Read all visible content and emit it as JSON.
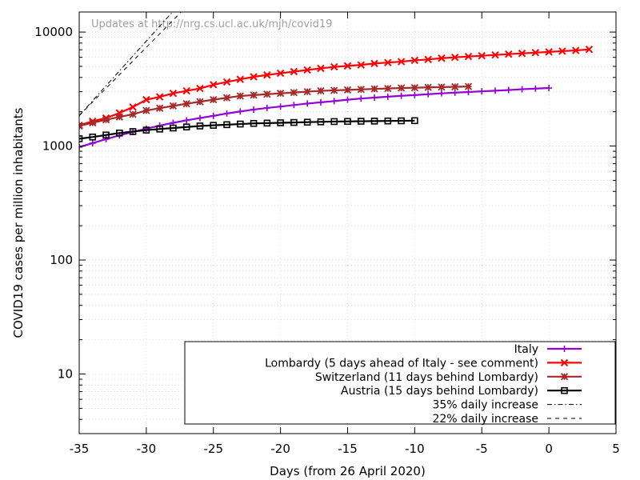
{
  "chart_data": {
    "type": "line",
    "watermark": "Updates at http://nrg.cs.ucl.ac.uk/mjh/covid19",
    "xlabel": "Days (from 26 April 2020)",
    "ylabel": "COVID19 cases per million inhabitants",
    "xlim": [
      -35,
      5
    ],
    "ylim": [
      3,
      15000
    ],
    "yscale": "log",
    "grid": true,
    "legend_position": "bottom-right",
    "x_ticks": [
      -35,
      -30,
      -25,
      -20,
      -15,
      -10,
      -5,
      0,
      5
    ],
    "y_ticks": [
      10,
      100,
      1000,
      10000
    ],
    "series": [
      {
        "name": "Italy",
        "color": "#9400d3",
        "marker": "plus",
        "x": [
          -35,
          -34,
          -33,
          -32,
          -31,
          -30,
          -29,
          -28,
          -27,
          -26,
          -25,
          -24,
          -23,
          -22,
          -21,
          -20,
          -19,
          -18,
          -17,
          -16,
          -15,
          -14,
          -13,
          -12,
          -11,
          -10,
          -9,
          -8,
          -7,
          -6,
          -5,
          -4,
          -3,
          -2,
          -1,
          0
        ],
        "y": [
          980,
          1060,
          1150,
          1240,
          1330,
          1420,
          1510,
          1600,
          1680,
          1760,
          1840,
          1930,
          2010,
          2090,
          2160,
          2220,
          2290,
          2360,
          2420,
          2480,
          2550,
          2610,
          2660,
          2710,
          2760,
          2800,
          2850,
          2900,
          2940,
          2980,
          3020,
          3060,
          3100,
          3150,
          3190,
          3230
        ]
      },
      {
        "name": "Lombardy (5 days ahead of Italy - see comment)",
        "color": "#ff0000",
        "marker": "cross",
        "x": [
          -35,
          -34,
          -33,
          -32,
          -31,
          -30,
          -29,
          -28,
          -27,
          -26,
          -25,
          -24,
          -23,
          -22,
          -21,
          -20,
          -19,
          -18,
          -17,
          -16,
          -15,
          -14,
          -13,
          -12,
          -11,
          -10,
          -9,
          -8,
          -7,
          -6,
          -5,
          -4,
          -3,
          -2,
          -1,
          0,
          1,
          2,
          3
        ],
        "y": [
          1520,
          1650,
          1760,
          1950,
          2200,
          2550,
          2700,
          2900,
          3050,
          3200,
          3450,
          3650,
          3850,
          4050,
          4200,
          4350,
          4500,
          4650,
          4800,
          4950,
          5050,
          5150,
          5300,
          5400,
          5500,
          5650,
          5750,
          5900,
          6000,
          6100,
          6200,
          6300,
          6400,
          6500,
          6600,
          6700,
          6800,
          6900,
          7050
        ]
      },
      {
        "name": "Switzerland (11 days behind Lombardy)",
        "color": "#a52a2a",
        "marker": "star",
        "x": [
          -35,
          -34,
          -33,
          -32,
          -31,
          -30,
          -29,
          -28,
          -27,
          -26,
          -25,
          -24,
          -23,
          -22,
          -21,
          -20,
          -19,
          -18,
          -17,
          -16,
          -15,
          -14,
          -13,
          -12,
          -11,
          -10,
          -9,
          -8,
          -7,
          -6
        ],
        "y": [
          1500,
          1600,
          1700,
          1800,
          1900,
          2050,
          2150,
          2250,
          2350,
          2450,
          2550,
          2650,
          2750,
          2800,
          2850,
          2900,
          2950,
          3000,
          3050,
          3080,
          3110,
          3140,
          3170,
          3200,
          3230,
          3250,
          3270,
          3290,
          3310,
          3330
        ]
      },
      {
        "name": "Austria (15 days behind Lombardy)",
        "color": "#000000",
        "marker": "square",
        "x": [
          -35,
          -34,
          -33,
          -32,
          -31,
          -30,
          -29,
          -28,
          -27,
          -26,
          -25,
          -24,
          -23,
          -22,
          -21,
          -20,
          -19,
          -18,
          -17,
          -16,
          -15,
          -14,
          -13,
          -12,
          -11,
          -10
        ],
        "y": [
          1160,
          1200,
          1250,
          1300,
          1340,
          1380,
          1410,
          1440,
          1470,
          1500,
          1520,
          1540,
          1560,
          1580,
          1590,
          1600,
          1610,
          1620,
          1630,
          1640,
          1645,
          1650,
          1655,
          1660,
          1665,
          1670
        ]
      }
    ],
    "reference_lines": [
      {
        "name": "35% daily increase",
        "dash": "dashdot",
        "x": [
          -35,
          -25
        ],
        "y": [
          1850,
          37500
        ]
      },
      {
        "name": "22% daily increase",
        "dash": "dashed",
        "x": [
          -35,
          -5
        ],
        "y": [
          1850,
          7200000
        ]
      }
    ]
  }
}
